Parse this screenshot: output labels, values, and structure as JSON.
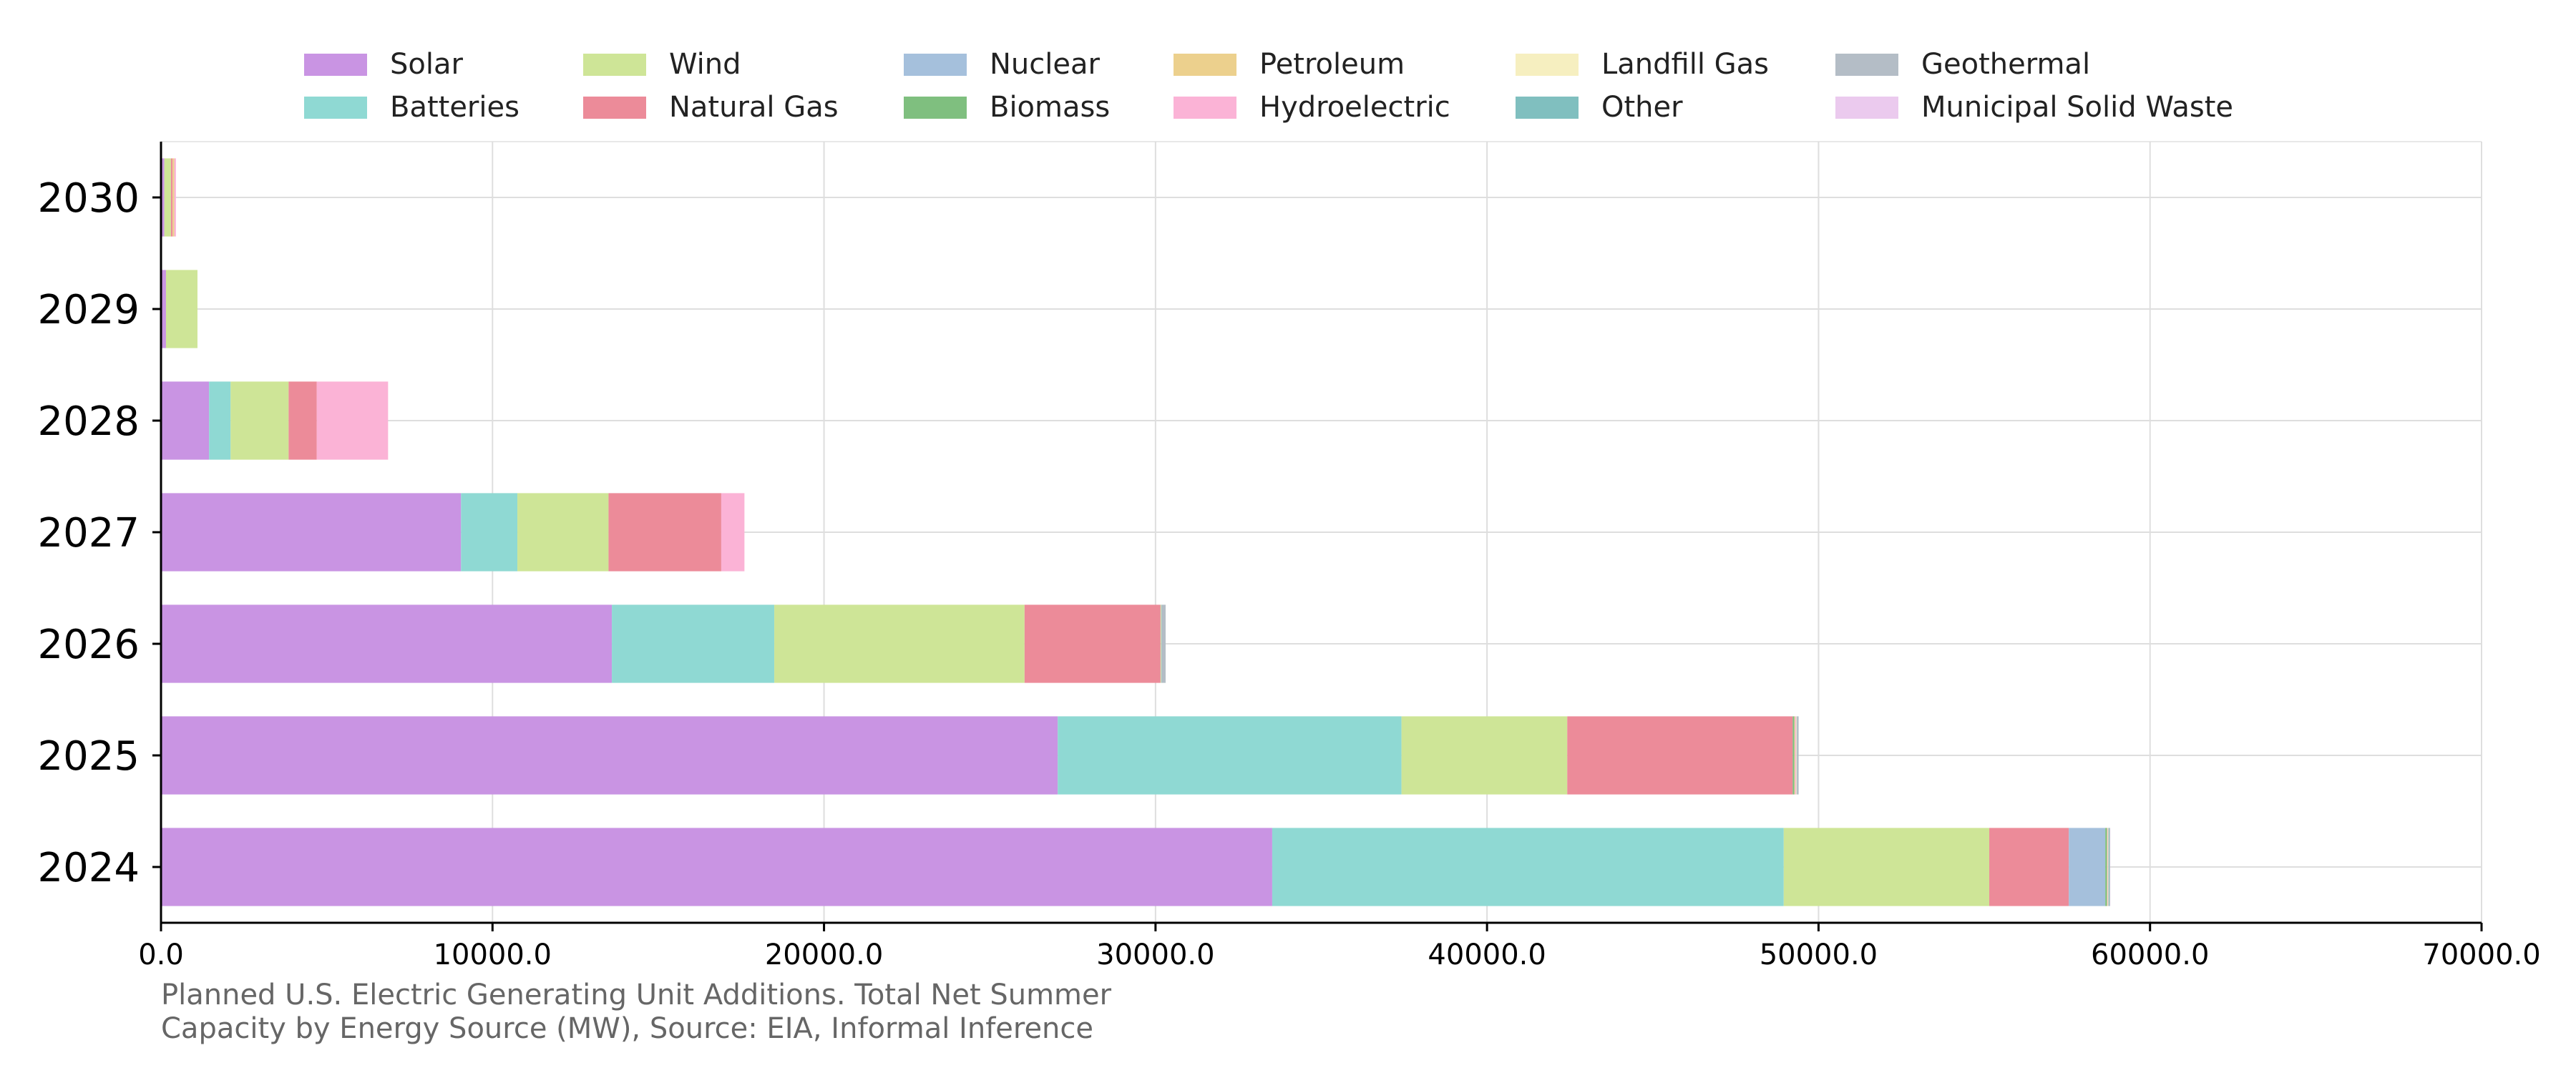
{
  "chart_data": {
    "type": "bar",
    "orientation": "horizontal",
    "stacked": true,
    "categories": [
      "2024",
      "2025",
      "2026",
      "2027",
      "2028",
      "2029",
      "2030"
    ],
    "series": [
      {
        "name": "Solar",
        "color": "#c994e3",
        "values": [
          33520,
          27050,
          13600,
          9050,
          1450,
          150,
          100
        ]
      },
      {
        "name": "Batteries",
        "color": "#8fd9d3",
        "values": [
          15430,
          10370,
          4900,
          1700,
          650,
          0,
          0
        ]
      },
      {
        "name": "Wind",
        "color": "#cee597",
        "values": [
          6200,
          5000,
          7550,
          2750,
          1750,
          950,
          200
        ]
      },
      {
        "name": "Natural Gas",
        "color": "#ec8b99",
        "values": [
          2400,
          6800,
          4100,
          3400,
          850,
          0,
          50
        ]
      },
      {
        "name": "Nuclear",
        "color": "#a5c0dc",
        "values": [
          1100,
          0,
          0,
          0,
          0,
          0,
          0
        ]
      },
      {
        "name": "Biomass",
        "color": "#7fbf7f",
        "values": [
          50,
          50,
          10,
          0,
          0,
          0,
          0
        ]
      },
      {
        "name": "Petroleum",
        "color": "#ecd08d",
        "values": [
          10,
          20,
          5,
          0,
          0,
          0,
          50
        ]
      },
      {
        "name": "Hydroelectric",
        "color": "#fbb3d6",
        "values": [
          15,
          30,
          0,
          700,
          2150,
          0,
          50
        ]
      },
      {
        "name": "Landfill Gas",
        "color": "#f6efc0",
        "values": [
          20,
          20,
          10,
          0,
          0,
          0,
          0
        ]
      },
      {
        "name": "Other",
        "color": "#80bfbf",
        "values": [
          20,
          10,
          10,
          0,
          0,
          0,
          0
        ]
      },
      {
        "name": "Geothermal",
        "color": "#b4bdc6",
        "values": [
          30,
          50,
          120,
          0,
          0,
          0,
          0
        ]
      },
      {
        "name": "Municipal Solid Waste",
        "color": "#ebcaee",
        "values": [
          5,
          0,
          0,
          0,
          0,
          0,
          0
        ]
      }
    ],
    "xlim": [
      0,
      70000
    ],
    "xticks": [
      0,
      10000,
      20000,
      30000,
      40000,
      50000,
      60000,
      70000
    ],
    "xtick_labels": [
      "0.0",
      "10000.0",
      "20000.0",
      "30000.0",
      "40000.0",
      "50000.0",
      "60000.0",
      "70000.0"
    ],
    "grid": true,
    "legend_placement": "top",
    "caption_lines": [
      "Planned U.S. Electric Generating Unit Additions. Total Net Summer",
      "Capacity by Energy Source (MW), Source: EIA, Informal Inference"
    ]
  }
}
